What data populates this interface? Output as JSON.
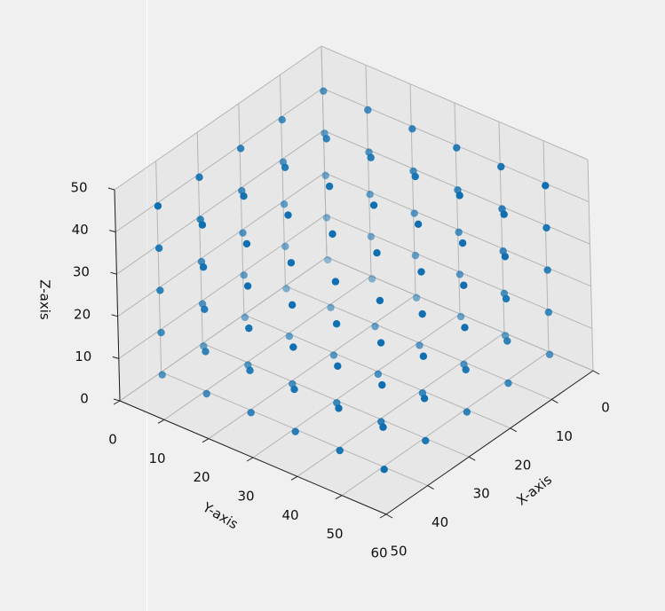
{
  "chart_data": {
    "type": "scatter3d",
    "xlabel": "X-axis",
    "ylabel": "Y-axis",
    "zlabel": "Z-axis",
    "xlim": [
      0,
      50
    ],
    "ylim": [
      0,
      60
    ],
    "zlim": [
      0,
      50
    ],
    "xticks": [
      0,
      10,
      20,
      30,
      40,
      50
    ],
    "yticks": [
      0,
      10,
      20,
      30,
      40,
      50,
      60
    ],
    "zticks": [
      0,
      10,
      20,
      30,
      40,
      50
    ],
    "grid": true,
    "color": "#0f6fb0",
    "x": [
      5,
      5,
      5,
      5,
      5,
      5,
      5,
      5,
      5,
      5,
      5,
      5,
      5,
      5,
      5,
      5,
      5,
      5,
      5,
      5,
      5,
      5,
      5,
      5,
      5,
      5,
      5,
      5,
      5,
      5,
      15,
      15,
      15,
      15,
      15,
      15,
      15,
      15,
      15,
      15,
      15,
      15,
      15,
      15,
      15,
      15,
      15,
      15,
      25,
      25,
      25,
      25,
      25,
      25,
      25,
      25,
      25,
      25,
      25,
      25,
      25,
      25,
      25,
      25,
      25,
      25,
      35,
      35,
      35,
      35,
      35,
      35,
      35,
      35,
      35,
      35,
      35,
      35,
      35,
      35,
      35,
      35,
      35,
      35,
      45,
      45,
      45,
      45,
      45,
      45,
      45,
      45,
      45,
      45,
      45,
      45,
      45,
      45,
      45,
      45,
      45,
      45,
      45,
      45,
      45,
      45,
      45,
      45,
      45,
      45,
      45,
      45,
      45,
      45
    ],
    "y": [
      5,
      5,
      5,
      5,
      5,
      15,
      15,
      15,
      15,
      15,
      25,
      25,
      25,
      25,
      25,
      35,
      35,
      35,
      35,
      35,
      45,
      45,
      45,
      45,
      45,
      55,
      55,
      55,
      55,
      55,
      5,
      5,
      5,
      5,
      5,
      15,
      15,
      25,
      25,
      35,
      35,
      45,
      45,
      55,
      55,
      55,
      55,
      55,
      5,
      5,
      5,
      5,
      5,
      15,
      15,
      25,
      25,
      35,
      35,
      45,
      45,
      55,
      55,
      55,
      55,
      55,
      5,
      5,
      5,
      5,
      5,
      15,
      15,
      25,
      25,
      35,
      35,
      45,
      45,
      55,
      55,
      55,
      55,
      55,
      5,
      5,
      5,
      5,
      5,
      15,
      15,
      15,
      15,
      15,
      25,
      25,
      25,
      25,
      25,
      35,
      35,
      35,
      35,
      35,
      45,
      45,
      45,
      45,
      45,
      55,
      55,
      55,
      55,
      55
    ],
    "z": [
      5,
      15,
      25,
      35,
      45,
      5,
      15,
      25,
      35,
      45,
      5,
      15,
      25,
      35,
      45,
      5,
      15,
      25,
      35,
      45,
      5,
      15,
      25,
      35,
      45,
      5,
      15,
      25,
      35,
      45,
      5,
      15,
      25,
      35,
      45,
      5,
      45,
      5,
      45,
      5,
      45,
      5,
      45,
      5,
      15,
      25,
      35,
      45,
      5,
      15,
      25,
      35,
      45,
      5,
      45,
      5,
      45,
      5,
      45,
      5,
      45,
      5,
      15,
      25,
      35,
      45,
      5,
      15,
      25,
      35,
      45,
      5,
      45,
      5,
      45,
      5,
      45,
      5,
      45,
      5,
      15,
      25,
      35,
      45,
      5,
      15,
      25,
      35,
      45,
      5,
      15,
      25,
      35,
      45,
      5,
      15,
      25,
      35,
      45,
      5,
      15,
      25,
      35,
      45,
      5,
      15,
      25,
      35,
      45,
      5,
      15,
      25,
      35,
      45
    ]
  }
}
